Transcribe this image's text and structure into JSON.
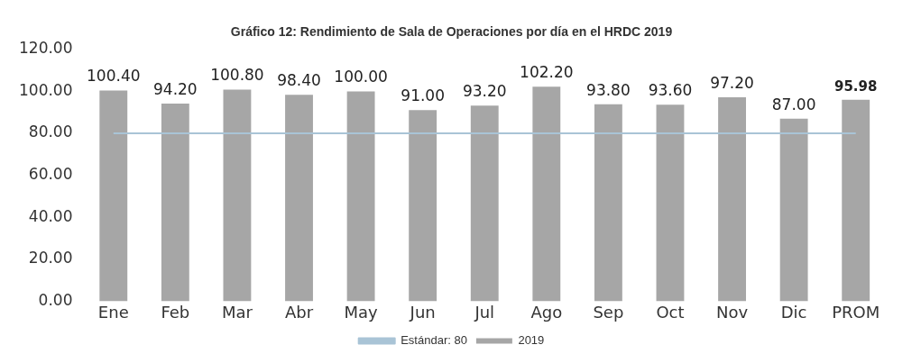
{
  "chart_data": {
    "type": "bar",
    "title": "Gráfico 12: Rendimiento de Sala de Operaciones por día en el HRDC 2019",
    "categories": [
      "Ene",
      "Feb",
      "Mar",
      "Abr",
      "May",
      "Jun",
      "Jul",
      "Ago",
      "Sep",
      "Oct",
      "Nov",
      "Dic",
      "PROM"
    ],
    "series": [
      {
        "name": "2019",
        "color": "#a6a6a6",
        "values": [
          100.4,
          94.2,
          100.8,
          98.4,
          100,
          91,
          93.2,
          102.2,
          93.8,
          93.6,
          97.2,
          87,
          95.98
        ],
        "value_labels": [
          "100.40",
          "94.20",
          "100.80",
          "98.40",
          "100.00",
          "91.00",
          "93.20",
          "102.20",
          "93.80",
          "93.60",
          "97.20",
          "87.00",
          "95.98"
        ]
      },
      {
        "name": "Estándar: 80",
        "type": "line",
        "color": "#a9c4d6",
        "values": [
          80,
          80,
          80,
          80,
          80,
          80,
          80,
          80,
          80,
          80,
          80,
          80,
          80
        ]
      }
    ],
    "ylim": [
      0,
      120
    ],
    "yticks": [
      {
        "value": 0,
        "label": "0.00"
      },
      {
        "value": 20,
        "label": "20.00"
      },
      {
        "value": 40,
        "label": "40.00"
      },
      {
        "value": 60,
        "label": "60.00"
      },
      {
        "value": 80,
        "label": "80.00"
      },
      {
        "value": 100,
        "label": "100.00"
      },
      {
        "value": 120,
        "label": "120.00"
      }
    ],
    "legend": "bottom",
    "marker": "none"
  }
}
